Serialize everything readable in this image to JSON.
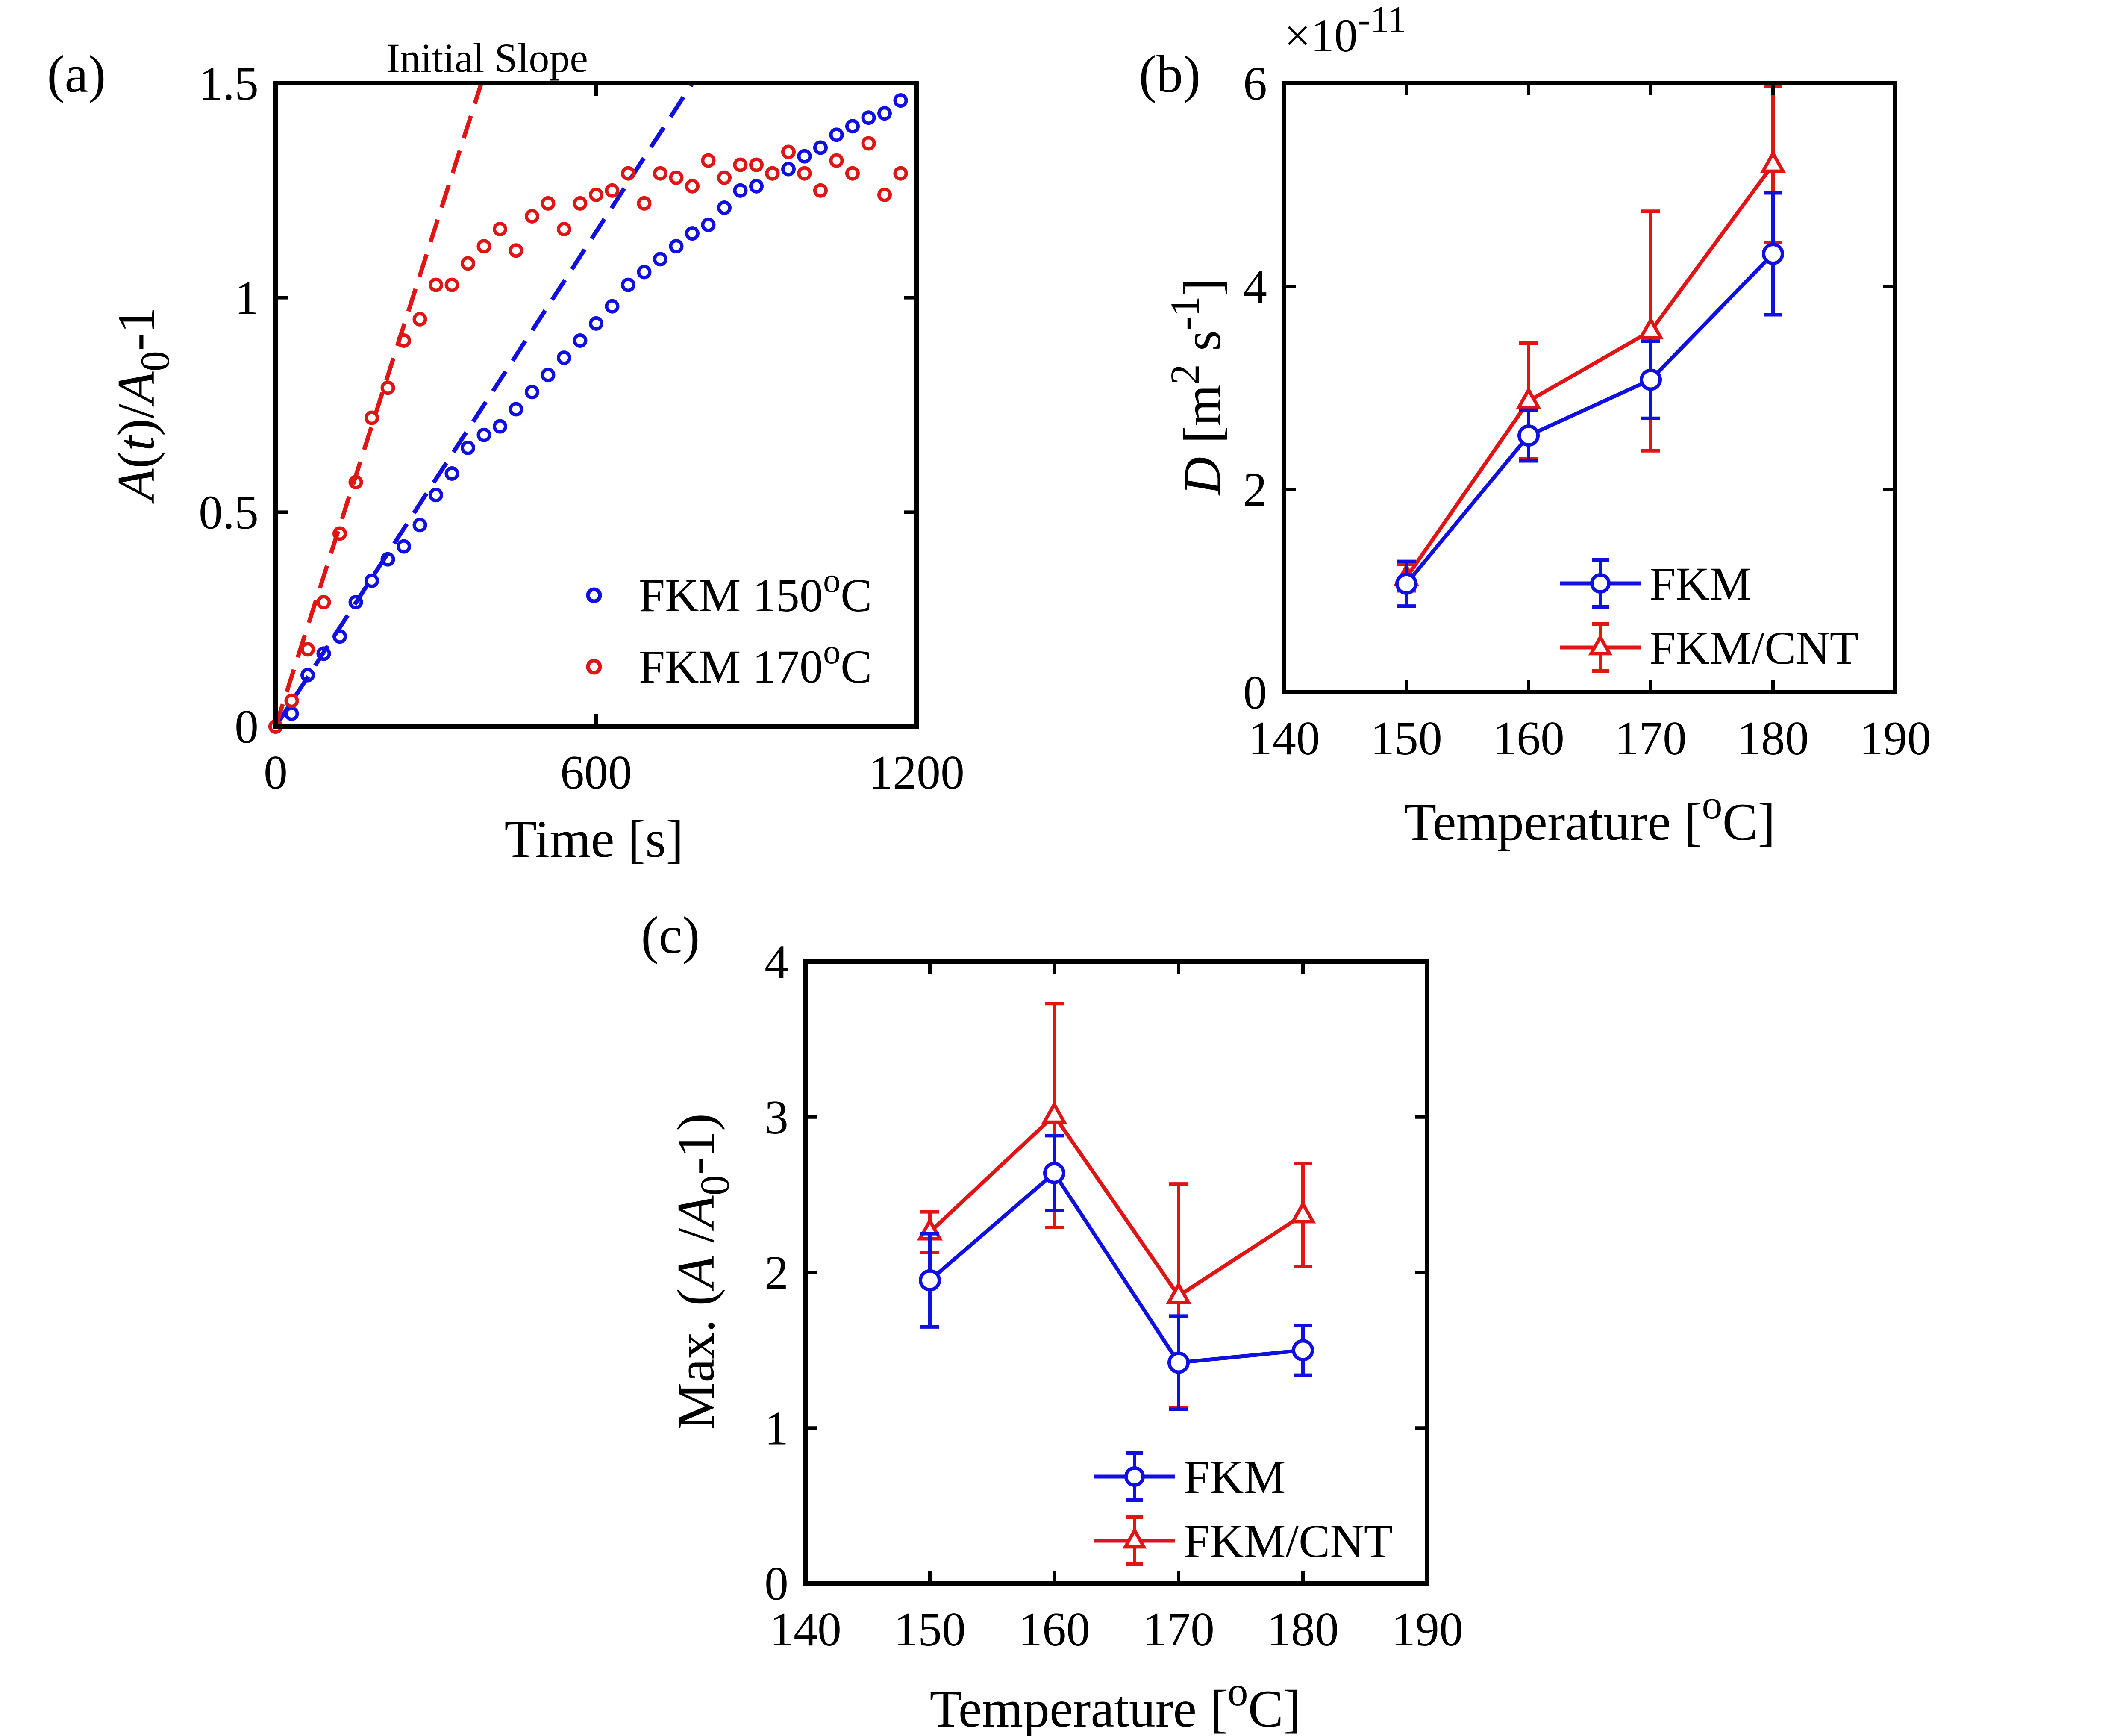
{
  "figure": {
    "panel_labels": [
      "(a)",
      "(b)",
      "(c)"
    ]
  },
  "chart_data": [
    {
      "type": "scatter",
      "panel": "(a)",
      "annotation": "Initial Slope",
      "xlabel": "Time [s]",
      "ylabel": "A(t)/A0-1",
      "ylabel_parts": {
        "a": "A",
        "paren_open": "(",
        "t": "t",
        "slash": ")/",
        "a0": "A",
        "sub0": "0",
        "tail": "-1"
      },
      "xlim": [
        0,
        1200
      ],
      "ylim": [
        0,
        1.5
      ],
      "xticks": [
        0,
        600,
        1200
      ],
      "xtick_labels": [
        "0",
        "600",
        "1200"
      ],
      "yticks": [
        0,
        0.5,
        1,
        1.5
      ],
      "ytick_labels": [
        "0",
        "0.5",
        "1",
        "1.5"
      ],
      "legend_position": "bottom-right",
      "colors": {
        "FKM 150": "#1010e0",
        "FKM 170": "#e01515"
      },
      "series": [
        {
          "name": "FKM 150oC",
          "legend_text": "FKM 150",
          "legend_sup": "o",
          "legend_unit": "C",
          "color": "#1010e0",
          "x": [
            0,
            30,
            60,
            90,
            120,
            150,
            180,
            210,
            240,
            270,
            300,
            330,
            360,
            390,
            420,
            450,
            480,
            510,
            540,
            570,
            600,
            630,
            660,
            690,
            720,
            750,
            780,
            810,
            840,
            870,
            900,
            930,
            960,
            990,
            1020,
            1050,
            1080,
            1110,
            1140,
            1170
          ],
          "y": [
            0,
            0.03,
            0.12,
            0.17,
            0.21,
            0.29,
            0.34,
            0.39,
            0.42,
            0.47,
            0.54,
            0.59,
            0.65,
            0.68,
            0.7,
            0.74,
            0.78,
            0.82,
            0.86,
            0.9,
            0.94,
            0.98,
            1.03,
            1.06,
            1.09,
            1.12,
            1.15,
            1.17,
            1.21,
            1.25,
            1.26,
            1.29,
            1.3,
            1.33,
            1.35,
            1.38,
            1.4,
            1.42,
            1.43,
            1.46
          ]
        },
        {
          "name": "FKM 170oC",
          "legend_text": "FKM 170",
          "legend_sup": "o",
          "legend_unit": "C",
          "color": "#e01515",
          "x": [
            0,
            30,
            60,
            90,
            120,
            150,
            180,
            210,
            240,
            270,
            300,
            330,
            360,
            390,
            420,
            450,
            480,
            510,
            540,
            570,
            600,
            630,
            660,
            690,
            720,
            750,
            780,
            810,
            840,
            870,
            900,
            930,
            960,
            990,
            1020,
            1050,
            1080,
            1110,
            1140,
            1170
          ],
          "y": [
            0,
            0.06,
            0.18,
            0.29,
            0.45,
            0.57,
            0.72,
            0.79,
            0.9,
            0.95,
            1.03,
            1.03,
            1.08,
            1.12,
            1.16,
            1.11,
            1.19,
            1.22,
            1.16,
            1.22,
            1.24,
            1.25,
            1.29,
            1.22,
            1.29,
            1.28,
            1.26,
            1.32,
            1.28,
            1.31,
            1.31,
            1.29,
            1.34,
            1.29,
            1.25,
            1.32,
            1.29,
            1.36,
            1.24,
            1.29
          ]
        }
      ],
      "fit_lines": [
        {
          "name": "initial slope 150",
          "color": "#1010e0",
          "x": [
            0,
            780
          ],
          "y": [
            0,
            1.5
          ]
        },
        {
          "name": "initial slope 170",
          "color": "#e01515",
          "x": [
            0,
            385
          ],
          "y": [
            0,
            1.5
          ]
        }
      ]
    },
    {
      "type": "line",
      "panel": "(b)",
      "xlabel_text": "Temperature [",
      "xlabel_sup": "o",
      "xlabel_unit": "C]",
      "ylabel_parts": {
        "d": "D",
        "open": " [m",
        "sup2": "2",
        "s": " s",
        "supm1": "-1",
        "close": "]"
      },
      "scale_text": "×10",
      "scale_exp": "-11",
      "xlim": [
        140,
        190
      ],
      "ylim": [
        0,
        6
      ],
      "xticks": [
        140,
        150,
        160,
        170,
        180,
        190
      ],
      "xtick_labels": [
        "140",
        "150",
        "160",
        "170",
        "180",
        "190"
      ],
      "yticks": [
        0,
        2,
        4,
        6
      ],
      "ytick_labels": [
        "0",
        "2",
        "4",
        "6"
      ],
      "legend_position": "bottom-right",
      "series": [
        {
          "name": "FKM",
          "marker": "circle",
          "color": "#1010e0",
          "x": [
            150,
            160,
            170,
            180
          ],
          "y": [
            1.07,
            2.53,
            3.08,
            4.32
          ],
          "err": [
            0.22,
            0.25,
            0.38,
            0.6
          ]
        },
        {
          "name": "FKM/CNT",
          "marker": "triangle",
          "color": "#e01515",
          "x": [
            150,
            160,
            170,
            180
          ],
          "y": [
            1.13,
            2.87,
            3.56,
            5.2
          ],
          "err": [
            0.13,
            0.57,
            1.18,
            0.77
          ]
        }
      ]
    },
    {
      "type": "line",
      "panel": "(c)",
      "xlabel_text": "Temperature [",
      "xlabel_sup": "o",
      "xlabel_unit": "C]",
      "ylabel_parts": {
        "max": "Max. (",
        "a": "A",
        "slash": " /",
        "a0": "A",
        "sub0": "0",
        "tail": "-1)"
      },
      "xlim": [
        140,
        190
      ],
      "ylim": [
        0,
        4
      ],
      "xticks": [
        140,
        150,
        160,
        170,
        180,
        190
      ],
      "xtick_labels": [
        "140",
        "150",
        "160",
        "170",
        "180",
        "190"
      ],
      "yticks": [
        0,
        1,
        2,
        3,
        4
      ],
      "ytick_labels": [
        "0",
        "1",
        "2",
        "3",
        "4"
      ],
      "legend_position": "bottom-right",
      "series": [
        {
          "name": "FKM",
          "marker": "circle",
          "color": "#1010e0",
          "x": [
            150,
            160,
            170,
            180
          ],
          "y": [
            1.95,
            2.64,
            1.42,
            1.5
          ],
          "err": [
            0.3,
            0.24,
            0.3,
            0.16
          ]
        },
        {
          "name": "FKM/CNT",
          "marker": "triangle",
          "color": "#e01515",
          "x": [
            150,
            160,
            170,
            180
          ],
          "y": [
            2.26,
            3.01,
            1.85,
            2.37
          ],
          "err": [
            0.13,
            0.72,
            0.72,
            0.33
          ]
        }
      ]
    }
  ]
}
